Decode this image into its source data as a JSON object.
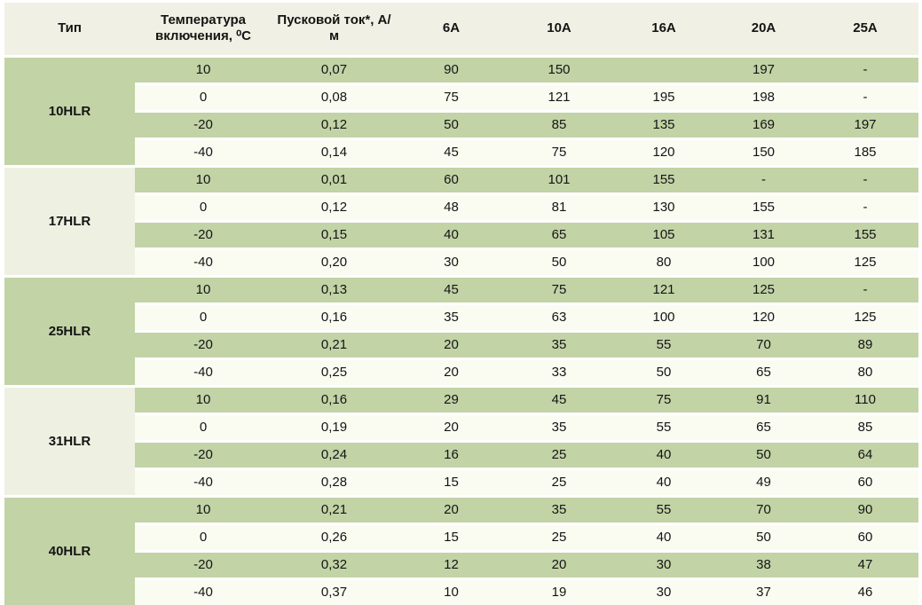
{
  "colors": {
    "row_green": "#c2d3a6",
    "row_light": "#fafbf1",
    "header_bg": "#f0f1e4",
    "type_light": "#eef0e2",
    "text": "#141414",
    "bottom_line": "#a5a69c",
    "page_bg": "#ffffff"
  },
  "table": {
    "columns": [
      "Тип",
      "Температура включения, ⁰С",
      "Пусковой ток*, А/м",
      "6А",
      "10А",
      "16А",
      "20А",
      "25А"
    ],
    "blocks": [
      {
        "type": "10HLR",
        "rows": [
          [
            "10",
            "0,07",
            "90",
            "150",
            "",
            "197",
            "-"
          ],
          [
            "0",
            "0,08",
            "75",
            "121",
            "195",
            "198",
            "-"
          ],
          [
            "-20",
            "0,12",
            "50",
            "85",
            "135",
            "169",
            "197"
          ],
          [
            "-40",
            "0,14",
            "45",
            "75",
            "120",
            "150",
            "185"
          ]
        ]
      },
      {
        "type": "17HLR",
        "rows": [
          [
            "10",
            "0,01",
            "60",
            "101",
            "155",
            "-",
            "-"
          ],
          [
            "0",
            "0,12",
            "48",
            "81",
            "130",
            "155",
            "-"
          ],
          [
            "-20",
            "0,15",
            "40",
            "65",
            "105",
            "131",
            "155"
          ],
          [
            "-40",
            "0,20",
            "30",
            "50",
            "80",
            "100",
            "125"
          ]
        ]
      },
      {
        "type": "25HLR",
        "rows": [
          [
            "10",
            "0,13",
            "45",
            "75",
            "121",
            "125",
            "-"
          ],
          [
            "0",
            "0,16",
            "35",
            "63",
            "100",
            "120",
            "125"
          ],
          [
            "-20",
            "0,21",
            "20",
            "35",
            "55",
            "70",
            "89"
          ],
          [
            "-40",
            "0,25",
            "20",
            "33",
            "50",
            "65",
            "80"
          ]
        ]
      },
      {
        "type": "31HLR",
        "rows": [
          [
            "10",
            "0,16",
            "29",
            "45",
            "75",
            "91",
            "110"
          ],
          [
            "0",
            "0,19",
            "20",
            "35",
            "55",
            "65",
            "85"
          ],
          [
            "-20",
            "0,24",
            "16",
            "25",
            "40",
            "50",
            "64"
          ],
          [
            "-40",
            "0,28",
            "15",
            "25",
            "40",
            "49",
            "60"
          ]
        ]
      },
      {
        "type": "40HLR",
        "rows": [
          [
            "10",
            "0,21",
            "20",
            "35",
            "55",
            "70",
            "90"
          ],
          [
            "0",
            "0,26",
            "15",
            "25",
            "40",
            "50",
            "60"
          ],
          [
            "-20",
            "0,32",
            "12",
            "20",
            "30",
            "38",
            "47"
          ],
          [
            "-40",
            "0,37",
            "10",
            "19",
            "30",
            "37",
            "46"
          ]
        ]
      }
    ]
  }
}
